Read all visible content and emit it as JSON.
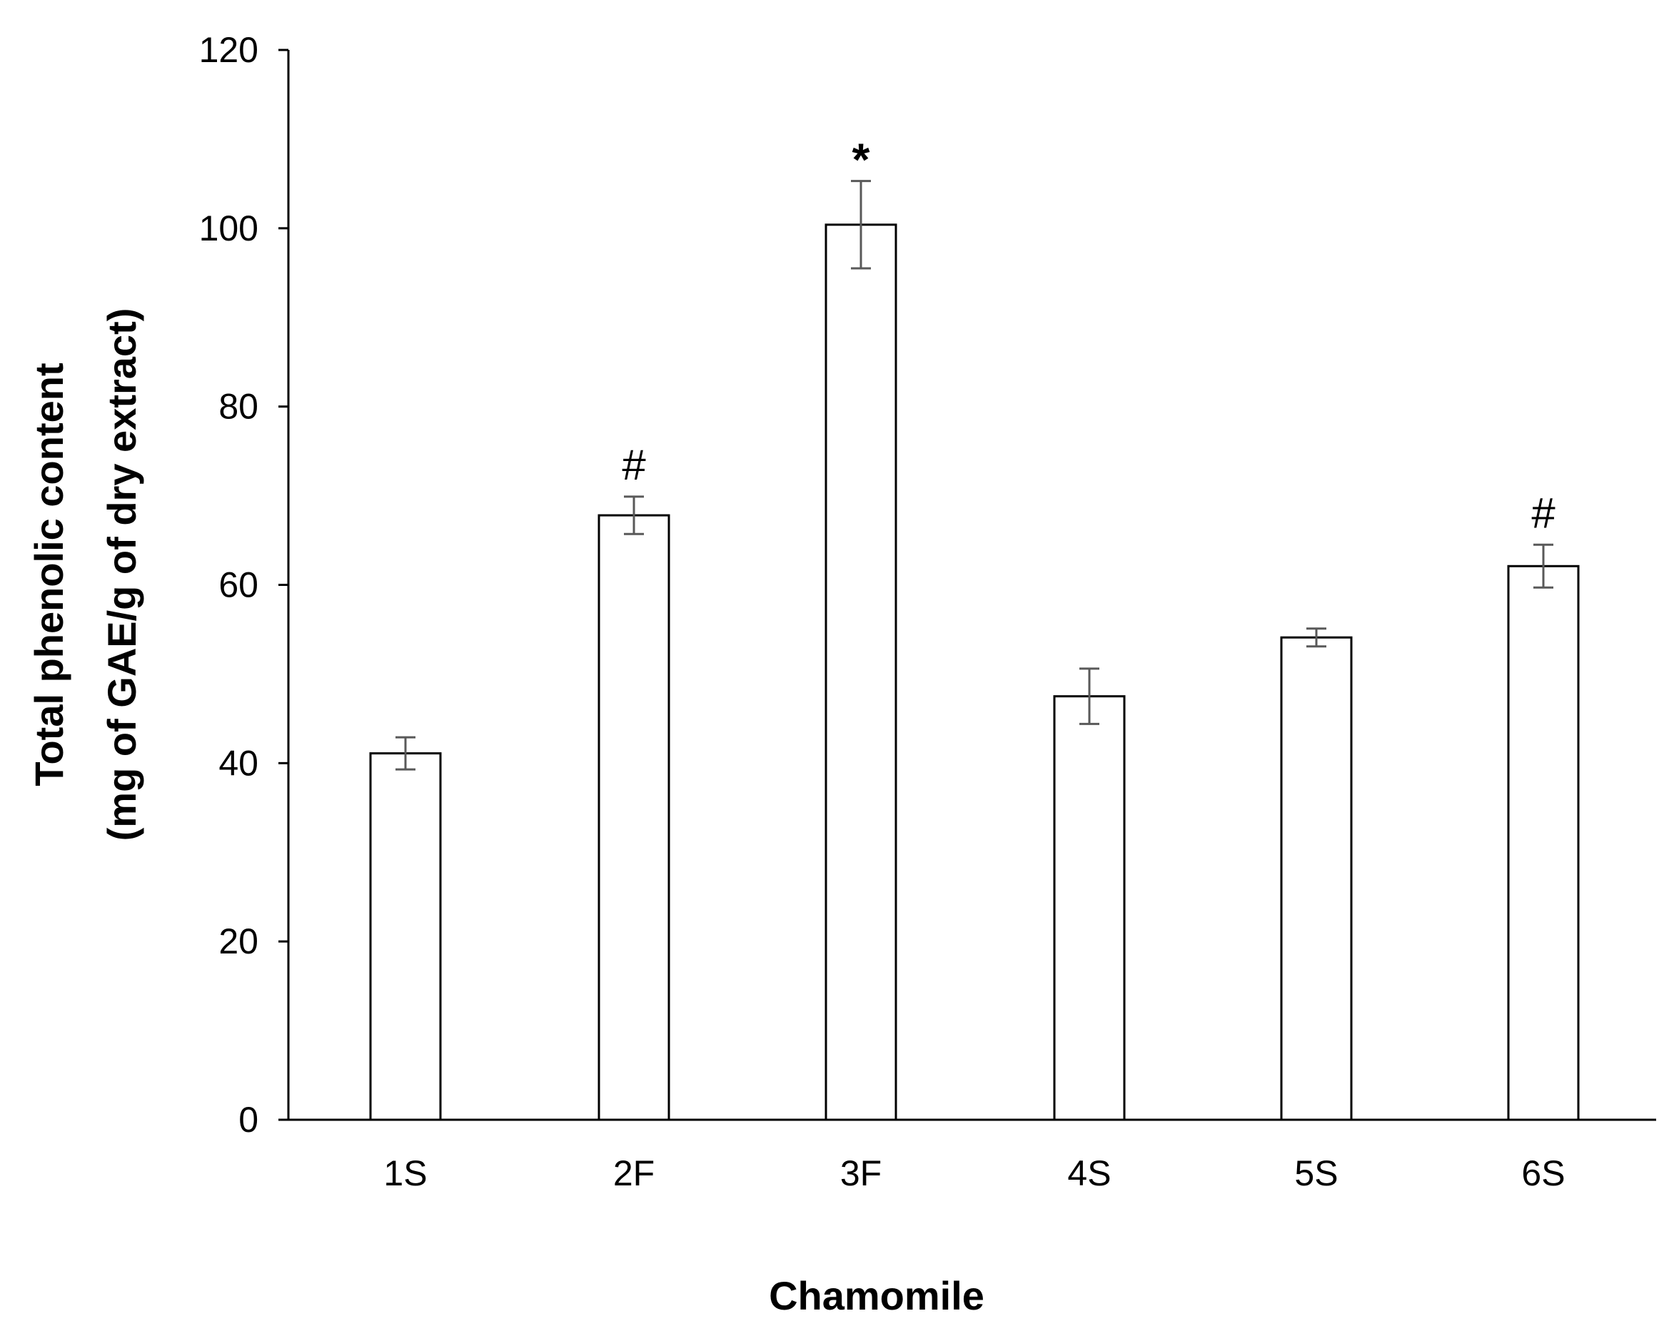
{
  "chart_data": {
    "type": "bar",
    "categories": [
      "1S",
      "2F",
      "3F",
      "4S",
      "5S",
      "6S"
    ],
    "values": [
      41.1,
      67.8,
      100.4,
      47.5,
      54.1,
      62.1
    ],
    "errors": [
      1.8,
      2.1,
      4.9,
      3.1,
      1.0,
      2.4
    ],
    "annotations": [
      "",
      "#",
      "*",
      "",
      "",
      "#"
    ],
    "xlabel": "Chamomile",
    "ylabel_lines": [
      "Total phenolic content",
      "(mg of GAE/g of dry extract)"
    ],
    "ylim": [
      0,
      120
    ],
    "yticks": [
      0,
      20,
      40,
      60,
      80,
      100,
      120
    ],
    "grid": false,
    "legend": "none",
    "bar_fill": "#ffffff",
    "bar_stroke": "#000000",
    "errorbar_color": "#595959"
  }
}
